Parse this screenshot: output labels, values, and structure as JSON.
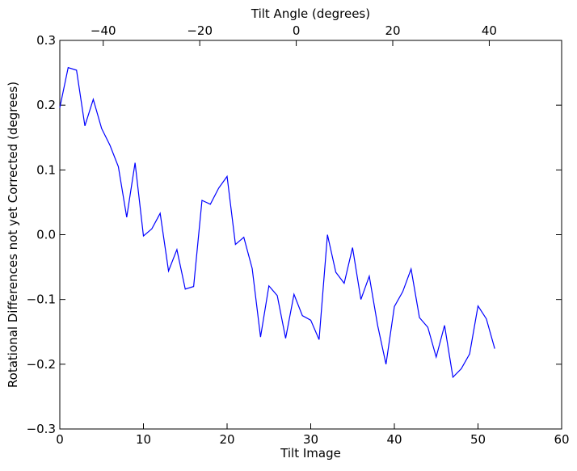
{
  "chart_data": {
    "type": "line",
    "title": "",
    "xlabel": "Tilt Image",
    "ylabel": "Rotational Differences not yet Corrected (degrees)",
    "top_xlabel": "Tilt Angle (degrees)",
    "xlim": [
      0,
      60
    ],
    "ylim": [
      -0.3,
      0.3
    ],
    "top_xlim": [
      -49,
      55
    ],
    "xticks": [
      0,
      10,
      20,
      30,
      40,
      50,
      60
    ],
    "xtick_labels": [
      "0",
      "10",
      "20",
      "30",
      "40",
      "50",
      "60"
    ],
    "yticks": [
      -0.3,
      -0.2,
      -0.1,
      0.0,
      0.1,
      0.2,
      0.3
    ],
    "ytick_labels": [
      "−0.3",
      "−0.2",
      "−0.1",
      "0.0",
      "0.1",
      "0.2",
      "0.3"
    ],
    "top_xticks": [
      -40,
      -20,
      0,
      20,
      40
    ],
    "top_xtick_labels": [
      "−40",
      "−20",
      "0",
      "20",
      "40"
    ],
    "grid": false,
    "series": [
      {
        "color": "#0000ff",
        "x": [
          0,
          1,
          2,
          3,
          4,
          5,
          6,
          7,
          8,
          9,
          10,
          11,
          12,
          13,
          14,
          15,
          16,
          17,
          18,
          19,
          20,
          21,
          22,
          23,
          24,
          25,
          26,
          27,
          28,
          29,
          30,
          31,
          32,
          33,
          34,
          35,
          36,
          37,
          38,
          39,
          40,
          41,
          42,
          43,
          44,
          45,
          46,
          47,
          48,
          49,
          50,
          51,
          52
        ],
        "values": [
          0.196,
          0.258,
          0.254,
          0.168,
          0.209,
          0.164,
          0.138,
          0.105,
          0.027,
          0.111,
          -0.002,
          0.009,
          0.033,
          -0.056,
          -0.023,
          -0.084,
          -0.08,
          0.053,
          0.047,
          0.072,
          0.09,
          -0.015,
          -0.004,
          -0.052,
          -0.158,
          -0.079,
          -0.094,
          -0.16,
          -0.092,
          -0.125,
          -0.132,
          -0.162,
          0.0,
          -0.058,
          -0.075,
          -0.02,
          -0.1,
          -0.064,
          -0.14,
          -0.2,
          -0.111,
          -0.088,
          -0.053,
          -0.128,
          -0.143,
          -0.189,
          -0.14,
          -0.22,
          -0.207,
          -0.184,
          -0.11,
          -0.13,
          -0.176
        ]
      }
    ]
  }
}
